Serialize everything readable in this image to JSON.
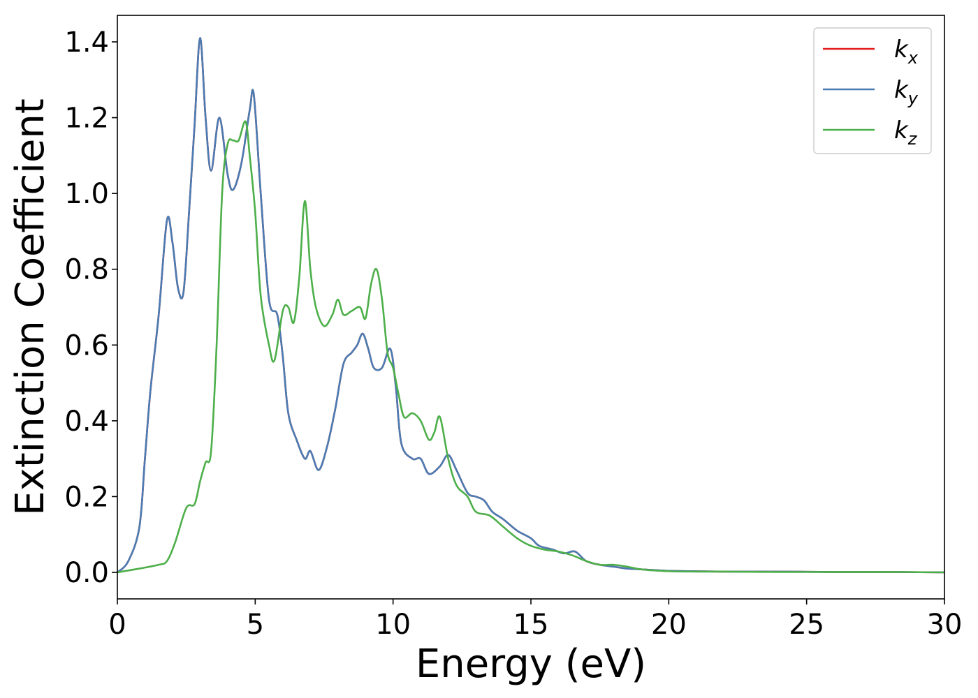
{
  "chart_data": {
    "type": "line",
    "xlabel": "Energy (eV)",
    "ylabel": "Extinction Coefficient",
    "xlim": [
      0,
      30
    ],
    "ylim": [
      -0.07,
      1.47
    ],
    "xticks": [
      0,
      5,
      10,
      15,
      20,
      25,
      30
    ],
    "yticks": [
      0.0,
      0.2,
      0.4,
      0.6,
      0.8,
      1.0,
      1.2,
      1.4
    ],
    "xtick_labels": [
      "0",
      "5",
      "10",
      "15",
      "20",
      "25",
      "30"
    ],
    "ytick_labels": [
      "0.0",
      "0.2",
      "0.4",
      "0.6",
      "0.8",
      "1.0",
      "1.2",
      "1.4"
    ],
    "grid": false,
    "legend_position": "top-right",
    "series": [
      {
        "name": "kx",
        "legend_main": "k",
        "legend_sub": "x",
        "color": "#e41a1c",
        "x": [
          0,
          0.4,
          0.8,
          1.0,
          1.2,
          1.5,
          1.8,
          2.0,
          2.2,
          2.4,
          2.6,
          2.8,
          3.0,
          3.2,
          3.4,
          3.7,
          4.0,
          4.2,
          4.5,
          4.8,
          4.95,
          5.2,
          5.5,
          5.8,
          6.0,
          6.2,
          6.5,
          6.8,
          7.0,
          7.3,
          7.6,
          7.9,
          8.2,
          8.5,
          8.7,
          8.9,
          9.1,
          9.3,
          9.6,
          9.9,
          10.1,
          10.3,
          10.7,
          11.0,
          11.3,
          11.7,
          12.0,
          12.3,
          12.7,
          13.0,
          13.3,
          13.6,
          14.0,
          14.5,
          15.0,
          15.3,
          15.8,
          16.2,
          16.6,
          17.0,
          17.5,
          18.0,
          18.5,
          19.0,
          20.0,
          21.0,
          22.0,
          24.0,
          26.0,
          28.0,
          30.0
        ],
        "values": [
          0.0,
          0.03,
          0.12,
          0.3,
          0.48,
          0.68,
          0.93,
          0.87,
          0.75,
          0.74,
          0.95,
          1.18,
          1.41,
          1.2,
          1.06,
          1.2,
          1.05,
          1.01,
          1.08,
          1.22,
          1.26,
          1.0,
          0.72,
          0.68,
          0.57,
          0.42,
          0.35,
          0.3,
          0.32,
          0.27,
          0.33,
          0.43,
          0.55,
          0.58,
          0.6,
          0.63,
          0.59,
          0.54,
          0.54,
          0.59,
          0.49,
          0.34,
          0.3,
          0.3,
          0.26,
          0.28,
          0.31,
          0.27,
          0.21,
          0.2,
          0.19,
          0.16,
          0.14,
          0.11,
          0.09,
          0.07,
          0.06,
          0.05,
          0.055,
          0.03,
          0.02,
          0.015,
          0.01,
          0.008,
          0.004,
          0.003,
          0.002,
          0.002,
          0.001,
          0.001,
          0.0
        ]
      },
      {
        "name": "ky",
        "legend_main": "k",
        "legend_sub": "y",
        "color": "#4a7cb3",
        "x": [
          0,
          0.4,
          0.8,
          1.0,
          1.2,
          1.5,
          1.8,
          2.0,
          2.2,
          2.4,
          2.6,
          2.8,
          3.0,
          3.2,
          3.4,
          3.7,
          4.0,
          4.2,
          4.5,
          4.8,
          4.95,
          5.2,
          5.5,
          5.8,
          6.0,
          6.2,
          6.5,
          6.8,
          7.0,
          7.3,
          7.6,
          7.9,
          8.2,
          8.5,
          8.7,
          8.9,
          9.1,
          9.3,
          9.6,
          9.9,
          10.1,
          10.3,
          10.7,
          11.0,
          11.3,
          11.7,
          12.0,
          12.3,
          12.7,
          13.0,
          13.3,
          13.6,
          14.0,
          14.5,
          15.0,
          15.3,
          15.8,
          16.2,
          16.6,
          17.0,
          17.5,
          18.0,
          18.5,
          19.0,
          20.0,
          21.0,
          22.0,
          24.0,
          26.0,
          28.0,
          30.0
        ],
        "values": [
          0.0,
          0.03,
          0.12,
          0.3,
          0.48,
          0.68,
          0.93,
          0.87,
          0.75,
          0.74,
          0.95,
          1.18,
          1.41,
          1.2,
          1.06,
          1.2,
          1.05,
          1.01,
          1.08,
          1.22,
          1.26,
          1.0,
          0.72,
          0.68,
          0.57,
          0.42,
          0.35,
          0.3,
          0.32,
          0.27,
          0.33,
          0.43,
          0.55,
          0.58,
          0.6,
          0.63,
          0.59,
          0.54,
          0.54,
          0.59,
          0.49,
          0.34,
          0.3,
          0.3,
          0.26,
          0.28,
          0.31,
          0.27,
          0.21,
          0.2,
          0.19,
          0.16,
          0.14,
          0.11,
          0.09,
          0.07,
          0.06,
          0.05,
          0.055,
          0.03,
          0.02,
          0.015,
          0.01,
          0.008,
          0.004,
          0.003,
          0.002,
          0.002,
          0.001,
          0.001,
          0.0
        ]
      },
      {
        "name": "kz",
        "legend_main": "k",
        "legend_sub": "z",
        "color": "#4daf4a",
        "x": [
          0,
          0.8,
          1.5,
          1.8,
          2.1,
          2.5,
          2.8,
          3.0,
          3.2,
          3.4,
          3.6,
          3.8,
          4.0,
          4.2,
          4.4,
          4.65,
          4.8,
          5.0,
          5.2,
          5.5,
          5.7,
          6.0,
          6.2,
          6.4,
          6.6,
          6.8,
          7.0,
          7.2,
          7.5,
          7.8,
          8.0,
          8.2,
          8.5,
          8.8,
          9.0,
          9.2,
          9.4,
          9.6,
          9.8,
          10.0,
          10.2,
          10.4,
          10.7,
          11.0,
          11.3,
          11.5,
          11.7,
          12.0,
          12.3,
          12.7,
          13.0,
          13.5,
          14.0,
          14.5,
          15.0,
          15.5,
          16.0,
          16.5,
          17.0,
          17.5,
          18.0,
          18.5,
          19.0,
          20.0,
          21.0,
          22.0,
          24.0,
          26.0,
          28.0,
          30.0
        ],
        "values": [
          0.0,
          0.01,
          0.02,
          0.03,
          0.08,
          0.17,
          0.18,
          0.24,
          0.29,
          0.32,
          0.6,
          1.0,
          1.13,
          1.14,
          1.14,
          1.19,
          1.1,
          0.95,
          0.73,
          0.6,
          0.56,
          0.69,
          0.7,
          0.66,
          0.78,
          0.98,
          0.8,
          0.7,
          0.65,
          0.68,
          0.72,
          0.68,
          0.69,
          0.7,
          0.67,
          0.76,
          0.8,
          0.72,
          0.58,
          0.54,
          0.47,
          0.41,
          0.42,
          0.4,
          0.35,
          0.37,
          0.41,
          0.3,
          0.23,
          0.2,
          0.16,
          0.15,
          0.12,
          0.09,
          0.07,
          0.06,
          0.055,
          0.045,
          0.03,
          0.02,
          0.02,
          0.015,
          0.008,
          0.003,
          0.002,
          0.002,
          0.001,
          0.001,
          0.001,
          0.0
        ]
      }
    ]
  }
}
